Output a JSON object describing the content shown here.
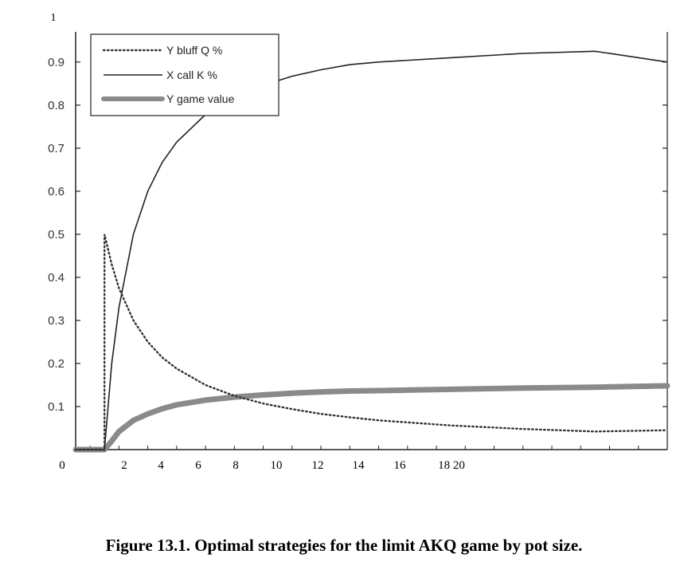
{
  "caption": "Figure 13.1. Optimal strategies for the limit AKQ game by pot size.",
  "chart_data": {
    "type": "line",
    "title": "",
    "xlabel": "",
    "ylabel": "",
    "y_top_label": "1",
    "x_tick_labels": [
      "0",
      "2",
      "4",
      "6",
      "8",
      "10",
      "12",
      "14",
      "16",
      "18 20"
    ],
    "y_tick_labels": [
      "0.1",
      "0.2",
      "0.3",
      "0.4",
      "0.5",
      "0.6",
      "0.7",
      "0.8",
      "0.9"
    ],
    "y_ticks": [
      0.1,
      0.2,
      0.3,
      0.4,
      0.5,
      0.6,
      0.7,
      0.8,
      0.9
    ],
    "xlim": [
      -1,
      40
    ],
    "ylim": [
      0,
      0.97
    ],
    "grid": false,
    "legend_position": "top-left",
    "series": [
      {
        "name": "Y bluff Q %",
        "style": "dotted",
        "color": "#333333",
        "x": [
          -1,
          1,
          1,
          1.5,
          2,
          3,
          4,
          5,
          6,
          8,
          10,
          12,
          14,
          16,
          18,
          20,
          25,
          30,
          35,
          40
        ],
        "y": [
          0,
          0,
          0.5,
          0.43,
          0.375,
          0.3,
          0.25,
          0.214,
          0.188,
          0.15,
          0.125,
          0.107,
          0.094,
          0.083,
          0.075,
          0.068,
          0.056,
          0.048,
          0.042,
          0.045
        ]
      },
      {
        "name": "X call K %",
        "style": "solid",
        "color": "#222222",
        "x": [
          -1,
          1,
          1.5,
          2,
          3,
          4,
          5,
          6,
          8,
          10,
          12,
          14,
          16,
          18,
          20,
          25,
          30,
          35,
          40
        ],
        "y": [
          0,
          0,
          0.2,
          0.33,
          0.5,
          0.6,
          0.667,
          0.714,
          0.778,
          0.818,
          0.846,
          0.867,
          0.882,
          0.894,
          0.9,
          0.91,
          0.92,
          0.925,
          0.9
        ]
      },
      {
        "name": "Y game value",
        "style": "thick",
        "color": "#8a8a8a",
        "x": [
          -1,
          1,
          1.5,
          2,
          3,
          4,
          5,
          6,
          8,
          10,
          12,
          14,
          16,
          18,
          20,
          25,
          30,
          35,
          40
        ],
        "y": [
          0,
          0,
          0.02,
          0.042,
          0.068,
          0.083,
          0.095,
          0.104,
          0.115,
          0.122,
          0.127,
          0.131,
          0.134,
          0.136,
          0.137,
          0.14,
          0.143,
          0.145,
          0.148
        ]
      }
    ]
  }
}
